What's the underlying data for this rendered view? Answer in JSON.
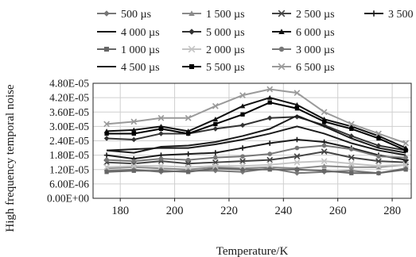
{
  "chart_data": {
    "type": "line",
    "title": "",
    "xlabel": "Temperature/K",
    "ylabel": "High frequency temporal noise",
    "xlim": [
      170,
      287
    ],
    "ylim": [
      0,
      4.8e-05
    ],
    "x": [
      175,
      185,
      195,
      205,
      215,
      225,
      235,
      245,
      255,
      265,
      275,
      285
    ],
    "x_ticks": [
      180,
      200,
      220,
      240,
      260,
      280
    ],
    "x_tick_labels": [
      "180",
      "200",
      "220",
      "240",
      "260",
      "280"
    ],
    "y_ticks": [
      0,
      6e-06,
      1.2e-05,
      1.8e-05,
      2.4e-05,
      3e-05,
      3.6e-05,
      4.2e-05,
      4.8e-05
    ],
    "y_tick_labels": [
      "0.00E+00",
      "6.00E-06",
      "1.20E-05",
      "1.80E-05",
      "2.40E-05",
      "3.00E-05",
      "3.60E-05",
      "4.20E-05",
      "4.80E-05"
    ],
    "grid": "both",
    "legend_position": "top",
    "series": [
      {
        "name": "500 µs",
        "color": "#777777",
        "marker": "diamond",
        "values": [
          1.15e-05,
          1.2e-05,
          1.1e-05,
          1.15e-05,
          1.15e-05,
          1.1e-05,
          1.25e-05,
          1.05e-05,
          1.1e-05,
          1.15e-05,
          1.05e-05,
          1.25e-05
        ]
      },
      {
        "name": "1 500 µs",
        "color": "#8a8a8a",
        "marker": "triangle",
        "values": [
          1.25e-05,
          1.3e-05,
          1.25e-05,
          1.2e-05,
          1.3e-05,
          1.25e-05,
          1.3e-05,
          1.25e-05,
          1.35e-05,
          1.3e-05,
          1.3e-05,
          1.4e-05
        ]
      },
      {
        "name": "2 500 µs",
        "color": "#444444",
        "marker": "x",
        "values": [
          1.5e-05,
          1.45e-05,
          1.55e-05,
          1.45e-05,
          1.5e-05,
          1.55e-05,
          1.6e-05,
          1.75e-05,
          1.95e-05,
          1.7e-05,
          1.55e-05,
          1.5e-05
        ]
      },
      {
        "name": "3 500 µs",
        "color": "#1a1a1a",
        "marker": "plus",
        "values": [
          1.8e-05,
          1.65e-05,
          1.8e-05,
          1.85e-05,
          1.9e-05,
          2.1e-05,
          2.3e-05,
          2.45e-05,
          2.35e-05,
          2.1e-05,
          1.8e-05,
          1.6e-05
        ]
      },
      {
        "name": "4 000 µs",
        "color": "#1a1a1a",
        "marker": "none",
        "values": [
          2e-05,
          2.05e-05,
          2.1e-05,
          2.1e-05,
          2.25e-05,
          2.45e-05,
          2.7e-05,
          3e-05,
          2.7e-05,
          2.3e-05,
          2e-05,
          1.8e-05
        ]
      },
      {
        "name": "5 000 µs",
        "color": "#333333",
        "marker": "diamond",
        "values": [
          2.5e-05,
          2.45e-05,
          2.7e-05,
          2.7e-05,
          2.9e-05,
          3.05e-05,
          3.35e-05,
          3.4e-05,
          3.05e-05,
          2.6e-05,
          2.2e-05,
          2e-05
        ]
      },
      {
        "name": "6 000 µs",
        "color": "#111111",
        "marker": "triangle",
        "values": [
          2.8e-05,
          2.85e-05,
          3e-05,
          2.8e-05,
          3.3e-05,
          3.85e-05,
          4.2e-05,
          3.9e-05,
          3.3e-05,
          3e-05,
          2.6e-05,
          2.1e-05
        ]
      },
      {
        "name": "1 000 µs",
        "color": "#666666",
        "marker": "square",
        "values": [
          1.1e-05,
          1.15e-05,
          1.15e-05,
          1.1e-05,
          1.25e-05,
          1.2e-05,
          1.2e-05,
          1.2e-05,
          1.15e-05,
          1.05e-05,
          1.05e-05,
          1.2e-05
        ]
      },
      {
        "name": "2 000 µs",
        "color": "#c4c4c4",
        "marker": "x",
        "values": [
          1.3e-05,
          1.35e-05,
          1.35e-05,
          1.3e-05,
          1.35e-05,
          1.35e-05,
          1.4e-05,
          1.5e-05,
          1.55e-05,
          1.45e-05,
          1.35e-05,
          1.4e-05
        ]
      },
      {
        "name": "3 000 µs",
        "color": "#777777",
        "marker": "circle",
        "values": [
          1.6e-05,
          1.55e-05,
          1.65e-05,
          1.6e-05,
          1.7e-05,
          1.75e-05,
          1.85e-05,
          2.1e-05,
          2.2e-05,
          2.05e-05,
          1.75e-05,
          1.7e-05
        ]
      },
      {
        "name": "4 500 µs",
        "color": "#1a1a1a",
        "marker": "none",
        "values": [
          2e-05,
          1.9e-05,
          2.15e-05,
          2.2e-05,
          2.35e-05,
          2.6e-05,
          2.9e-05,
          3.45e-05,
          3e-05,
          2.5e-05,
          2.1e-05,
          1.9e-05
        ]
      },
      {
        "name": "5 500 µs",
        "color": "#000000",
        "marker": "square",
        "values": [
          2.7e-05,
          2.7e-05,
          2.9e-05,
          2.7e-05,
          3.1e-05,
          3.5e-05,
          4e-05,
          3.75e-05,
          3.2e-05,
          2.9e-05,
          2.5e-05,
          2e-05
        ]
      },
      {
        "name": "6 500 µs",
        "color": "#9a9a9a",
        "marker": "x",
        "values": [
          3.1e-05,
          3.2e-05,
          3.35e-05,
          3.35e-05,
          3.85e-05,
          4.3e-05,
          4.55e-05,
          4.4e-05,
          3.6e-05,
          3.1e-05,
          2.7e-05,
          2.3e-05
        ]
      }
    ]
  }
}
